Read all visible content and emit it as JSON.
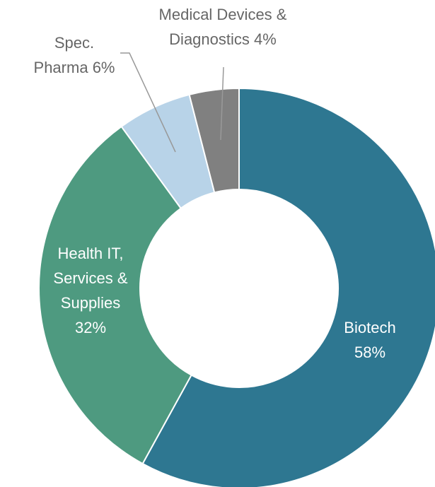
{
  "chart_data": {
    "type": "donut",
    "categories": [
      "Biotech",
      "Health IT, Services & Supplies",
      "Spec. Pharma",
      "Medical Devices & Diagnostics"
    ],
    "values": [
      58,
      32,
      6,
      4
    ],
    "value_labels": [
      "58%",
      "32%",
      "6%",
      "4%"
    ],
    "colors": [
      "#2e7791",
      "#4e9a80",
      "#b8d3e8",
      "#808080"
    ]
  }
}
